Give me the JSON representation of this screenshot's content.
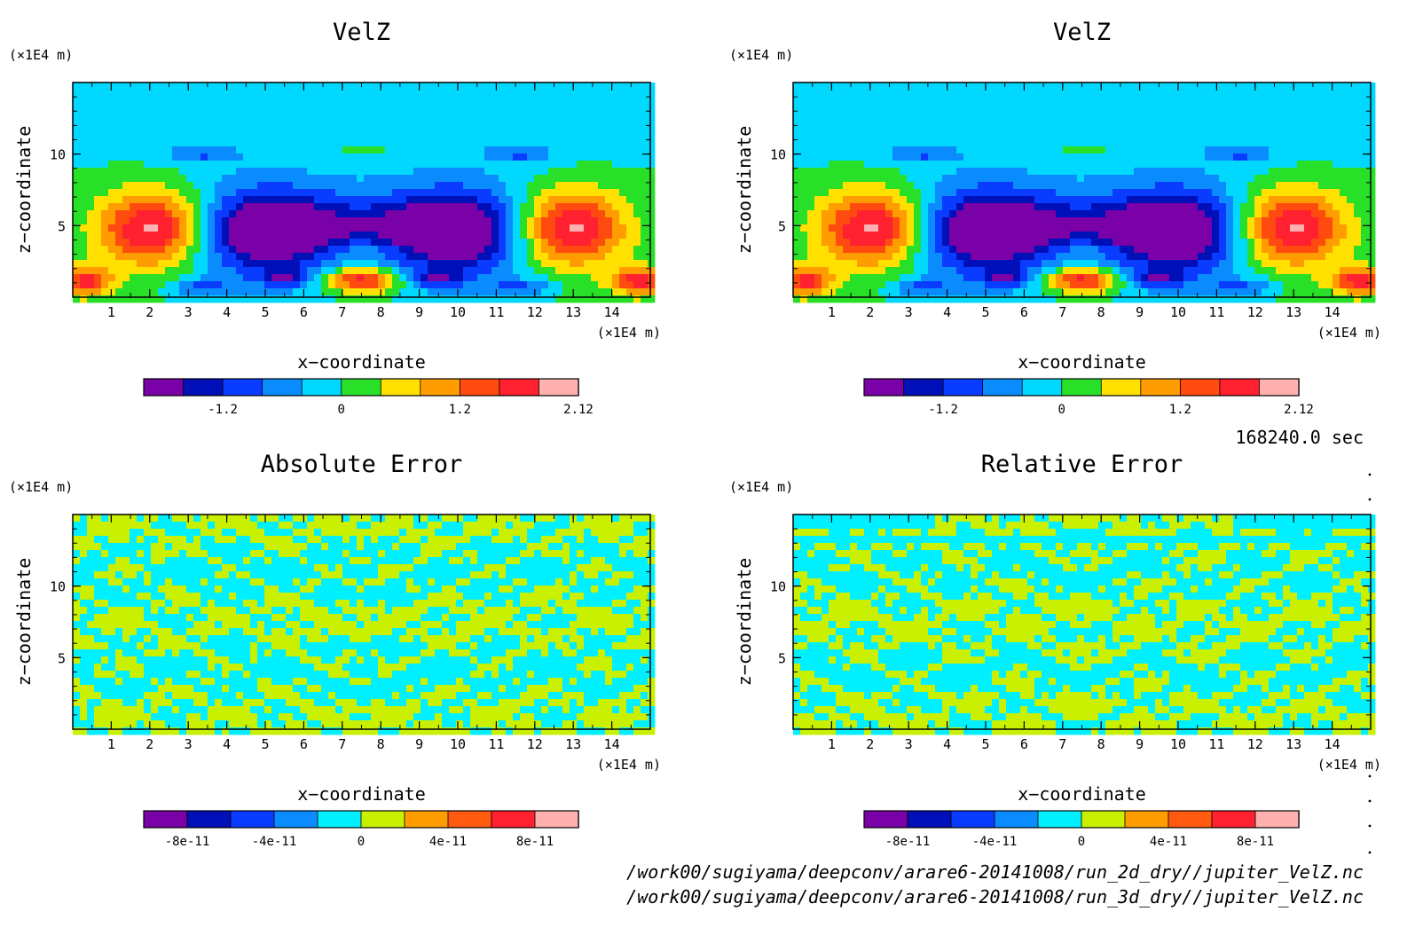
{
  "chart_data": [
    {
      "type": "heatmap",
      "title": "VelZ",
      "xlabel": "x−coordinate",
      "ylabel": "z−coordinate",
      "xunit": "(×1E4 m)",
      "yunit": "(×1E4 m)",
      "xlim": [
        0,
        15
      ],
      "ylim": [
        0,
        15
      ],
      "xticks": [
        "1",
        "2",
        "3",
        "4",
        "5",
        "6",
        "7",
        "8",
        "9",
        "10",
        "11",
        "12",
        "13",
        "14"
      ],
      "yticks": [
        "5",
        "10"
      ],
      "colorbar": {
        "colors": [
          "#7a00a8",
          "#0010b8",
          "#0a3cff",
          "#0a8cff",
          "#00d8ff",
          "#28e028",
          "#ffe000",
          "#ff9c00",
          "#ff4a10",
          "#ff2030",
          "#ffb0b0"
        ],
        "ticks": [
          "-1.2",
          "0",
          "1.2",
          "2.12"
        ]
      },
      "field": "velz"
    },
    {
      "type": "heatmap",
      "title": "VelZ",
      "xlabel": "x−coordinate",
      "ylabel": "z−coordinate",
      "xunit": "(×1E4 m)",
      "yunit": "(×1E4 m)",
      "xlim": [
        0,
        15
      ],
      "ylim": [
        0,
        15
      ],
      "xticks": [
        "1",
        "2",
        "3",
        "4",
        "5",
        "6",
        "7",
        "8",
        "9",
        "10",
        "11",
        "12",
        "13",
        "14"
      ],
      "yticks": [
        "5",
        "10"
      ],
      "colorbar": {
        "colors": [
          "#7a00a8",
          "#0010b8",
          "#0a3cff",
          "#0a8cff",
          "#00d8ff",
          "#28e028",
          "#ffe000",
          "#ff9c00",
          "#ff4a10",
          "#ff2030",
          "#ffb0b0"
        ],
        "ticks": [
          "-1.2",
          "0",
          "1.2",
          "2.12"
        ]
      },
      "field": "velz"
    },
    {
      "type": "heatmap",
      "title": "Absolute Error",
      "xlabel": "x−coordinate",
      "ylabel": "z−coordinate",
      "xunit": "(×1E4 m)",
      "yunit": "(×1E4 m)",
      "xlim": [
        0,
        15
      ],
      "ylim": [
        0,
        15
      ],
      "xticks": [
        "1",
        "2",
        "3",
        "4",
        "5",
        "6",
        "7",
        "8",
        "9",
        "10",
        "11",
        "12",
        "13",
        "14"
      ],
      "yticks": [
        "5",
        "10"
      ],
      "colorbar": {
        "colors": [
          "#7a00a8",
          "#0010b8",
          "#0a3cff",
          "#0a8cff",
          "#00f0ff",
          "#c8f000",
          "#ff9c00",
          "#ff5a10",
          "#ff2030",
          "#ffb0b0"
        ],
        "ticks": [
          "-8e-11",
          "-4e-11",
          "0",
          "4e-11",
          "8e-11"
        ]
      },
      "field": "abserr"
    },
    {
      "type": "heatmap",
      "title": "Relative Error",
      "xlabel": "x−coordinate",
      "ylabel": "z−coordinate",
      "xunit": "(×1E4 m)",
      "yunit": "(×1E4 m)",
      "xlim": [
        0,
        15
      ],
      "ylim": [
        0,
        15
      ],
      "xticks": [
        "1",
        "2",
        "3",
        "4",
        "5",
        "6",
        "7",
        "8",
        "9",
        "10",
        "11",
        "12",
        "13",
        "14"
      ],
      "yticks": [
        "5",
        "10"
      ],
      "colorbar": {
        "colors": [
          "#7a00a8",
          "#0010b8",
          "#0a3cff",
          "#0a8cff",
          "#00f0ff",
          "#c8f000",
          "#ff9c00",
          "#ff5a10",
          "#ff2030",
          "#ffb0b0"
        ],
        "ticks": [
          "-8e-11",
          "-4e-11",
          "0",
          "4e-11",
          "8e-11"
        ]
      },
      "field": "relerr"
    }
  ],
  "time_label": "168240.0 sec",
  "file_paths": [
    "/work00/sugiyama/deepconv/arare6-20141008/run_2d_dry//jupiter_VelZ.nc",
    "/work00/sugiyama/deepconv/arare6-20141008/run_3d_dry//jupiter_VelZ.nc"
  ]
}
